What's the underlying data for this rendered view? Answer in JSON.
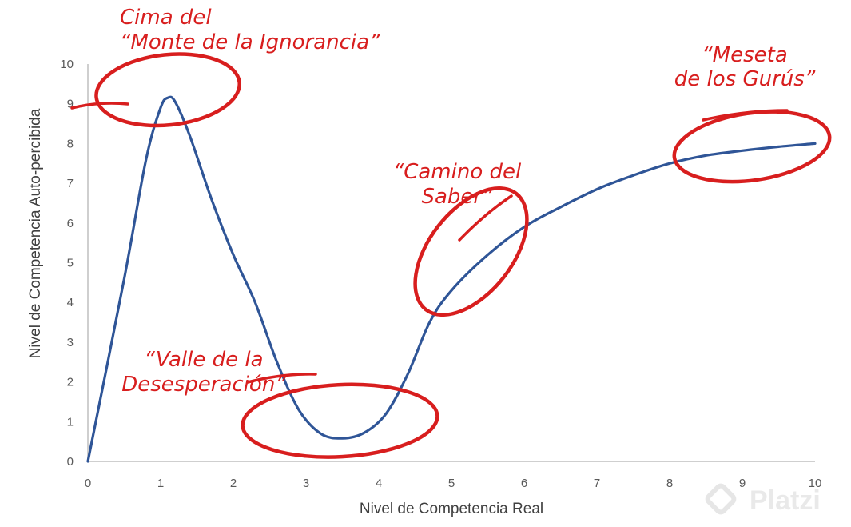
{
  "chart_data": {
    "type": "line",
    "xlabel": "Nivel de Competencia Real",
    "ylabel": "Nivel de Competencia Auto-percibida",
    "xlim": [
      0,
      10
    ],
    "ylim": [
      0,
      10
    ],
    "x_ticks": [
      "0",
      "1",
      "2",
      "3",
      "4",
      "5",
      "6",
      "7",
      "8",
      "9",
      "10"
    ],
    "y_ticks": [
      "0",
      "1",
      "2",
      "3",
      "4",
      "5",
      "6",
      "7",
      "8",
      "9",
      "10"
    ],
    "grid": false,
    "legend": "none",
    "series": [
      {
        "color": "#2f5597",
        "x": [
          0,
          0.5,
          0.8,
          1.0,
          1.1,
          1.2,
          1.4,
          1.7,
          2.0,
          2.3,
          2.6,
          2.9,
          3.2,
          3.5,
          3.8,
          4.1,
          4.4,
          4.7,
          5.0,
          5.5,
          6.0,
          6.5,
          7.0,
          7.5,
          8.0,
          8.5,
          9.0,
          9.5,
          10.0
        ],
        "y": [
          0,
          4.6,
          7.6,
          8.9,
          9.15,
          9.05,
          8.2,
          6.6,
          5.2,
          4.0,
          2.5,
          1.3,
          0.7,
          0.58,
          0.72,
          1.2,
          2.2,
          3.5,
          4.3,
          5.2,
          5.9,
          6.4,
          6.85,
          7.2,
          7.5,
          7.7,
          7.82,
          7.92,
          8.0
        ]
      }
    ],
    "annotations": [
      {
        "lines": [
          "Cima del",
          "“Monte de la Ignorancia”"
        ],
        "x": 1.1,
        "y": 9.15
      },
      {
        "lines": [
          "“Valle de la",
          "Desesperación”"
        ],
        "x": 3.5,
        "y": 0.58
      },
      {
        "lines": [
          "“Camino del",
          "Saber”"
        ],
        "x": 5.5,
        "y": 5.2
      },
      {
        "lines": [
          "“Meseta",
          "de los Gurús”"
        ],
        "x": 9.0,
        "y": 7.82
      }
    ]
  },
  "watermark": {
    "text": "Platzi",
    "icon": "platzi-logo-icon"
  },
  "colors": {
    "curve": "#2f5597",
    "annotation": "#d81e1e",
    "axis": "#bfbfbf"
  }
}
